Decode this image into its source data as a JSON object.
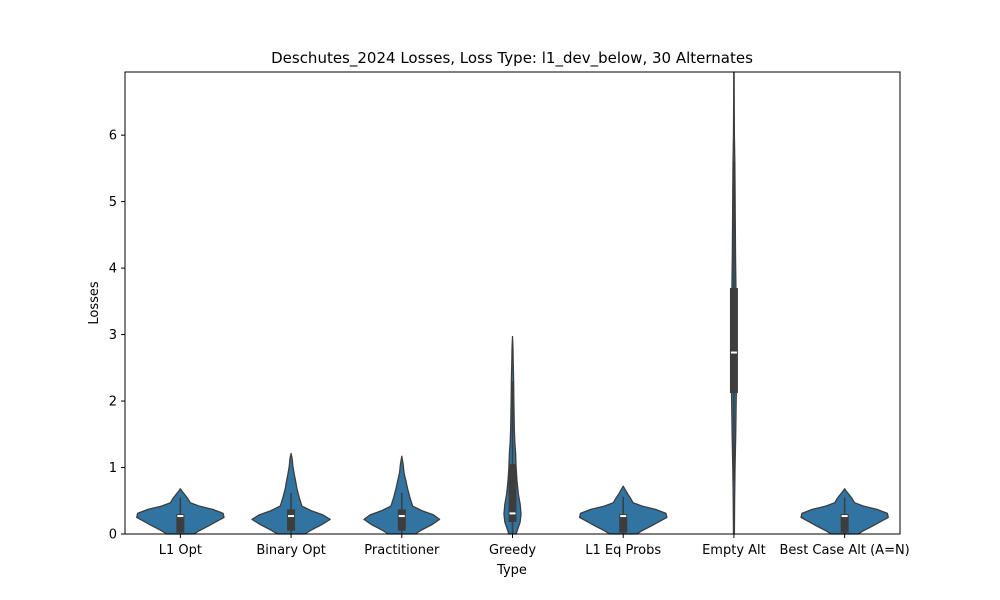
{
  "chart_data": {
    "type": "violin",
    "title": "Deschutes_2024 Losses, Loss Type: l1_dev_below, 30 Alternates",
    "xlabel": "Type",
    "ylabel": "Losses",
    "ylim": [
      0,
      6.95
    ],
    "yticks": [
      0,
      1,
      2,
      3,
      4,
      5,
      6
    ],
    "grid": false,
    "legend": "none",
    "colors": {
      "fill": "#3274a1",
      "outline": "#3d3d3d",
      "box": "#3d3d3d",
      "median": "#ffffff"
    },
    "categories": [
      {
        "label": "L1 Opt",
        "profile": [
          [
            0,
            0.3
          ],
          [
            0.05,
            0.42
          ],
          [
            0.12,
            0.62
          ],
          [
            0.18,
            0.78
          ],
          [
            0.25,
            0.97
          ],
          [
            0.31,
            0.95
          ],
          [
            0.37,
            0.72
          ],
          [
            0.42,
            0.42
          ],
          [
            0.47,
            0.22
          ],
          [
            0.53,
            0.17
          ],
          [
            0.6,
            0.09
          ],
          [
            0.65,
            0.03
          ],
          [
            0.68,
            0
          ]
        ],
        "box": {
          "q1": 0.02,
          "median": 0.27,
          "q3": 0.3,
          "whisker_low": 0,
          "whisker_high": 0.55
        }
      },
      {
        "label": "Binary Opt",
        "profile": [
          [
            0,
            0.3
          ],
          [
            0.06,
            0.45
          ],
          [
            0.14,
            0.68
          ],
          [
            0.22,
            0.87
          ],
          [
            0.29,
            0.7
          ],
          [
            0.35,
            0.45
          ],
          [
            0.42,
            0.24
          ],
          [
            0.55,
            0.18
          ],
          [
            0.68,
            0.13
          ],
          [
            0.8,
            0.1
          ],
          [
            0.9,
            0.07
          ],
          [
            1.02,
            0.04
          ],
          [
            1.13,
            0.025
          ],
          [
            1.21,
            0
          ]
        ],
        "box": {
          "q1": 0.05,
          "median": 0.27,
          "q3": 0.37,
          "whisker_low": 0,
          "whisker_high": 0.62
        }
      },
      {
        "label": "Practitioner",
        "profile": [
          [
            0,
            0.3
          ],
          [
            0.06,
            0.44
          ],
          [
            0.14,
            0.67
          ],
          [
            0.22,
            0.84
          ],
          [
            0.29,
            0.7
          ],
          [
            0.35,
            0.45
          ],
          [
            0.42,
            0.24
          ],
          [
            0.55,
            0.18
          ],
          [
            0.68,
            0.13
          ],
          [
            0.8,
            0.09
          ],
          [
            0.92,
            0.05
          ],
          [
            1.05,
            0.03
          ],
          [
            1.17,
            0
          ]
        ],
        "box": {
          "q1": 0.05,
          "median": 0.27,
          "q3": 0.37,
          "whisker_low": 0,
          "whisker_high": 0.62
        }
      },
      {
        "label": "Greedy",
        "profile": [
          [
            0,
            0.08
          ],
          [
            0.08,
            0.12
          ],
          [
            0.18,
            0.17
          ],
          [
            0.3,
            0.19
          ],
          [
            0.45,
            0.17
          ],
          [
            0.6,
            0.13
          ],
          [
            0.8,
            0.1
          ],
          [
            1.0,
            0.08
          ],
          [
            1.2,
            0.07
          ],
          [
            1.4,
            0.05
          ],
          [
            1.6,
            0.04
          ],
          [
            1.8,
            0.035
          ],
          [
            2.0,
            0.03
          ],
          [
            2.3,
            0.025
          ],
          [
            2.6,
            0.015
          ],
          [
            2.8,
            0.01
          ],
          [
            2.97,
            0
          ]
        ],
        "box": {
          "q1": 0.18,
          "median": 0.31,
          "q3": 1.05,
          "whisker_low": 0,
          "whisker_high": 2.3
        }
      },
      {
        "label": "L1 Eq Probs",
        "profile": [
          [
            0,
            0.3
          ],
          [
            0.05,
            0.42
          ],
          [
            0.12,
            0.62
          ],
          [
            0.18,
            0.78
          ],
          [
            0.25,
            0.97
          ],
          [
            0.31,
            0.95
          ],
          [
            0.37,
            0.72
          ],
          [
            0.42,
            0.42
          ],
          [
            0.47,
            0.22
          ],
          [
            0.53,
            0.17
          ],
          [
            0.6,
            0.1
          ],
          [
            0.66,
            0.05
          ],
          [
            0.72,
            0
          ]
        ],
        "box": {
          "q1": 0.02,
          "median": 0.27,
          "q3": 0.3,
          "whisker_low": 0,
          "whisker_high": 0.56
        }
      },
      {
        "label": "Empty Alt",
        "profile": [
          [
            0,
            0.01
          ],
          [
            0.5,
            0.015
          ],
          [
            1.0,
            0.025
          ],
          [
            1.5,
            0.04
          ],
          [
            2.0,
            0.05
          ],
          [
            2.5,
            0.06
          ],
          [
            2.8,
            0.06
          ],
          [
            3.2,
            0.055
          ],
          [
            3.7,
            0.045
          ],
          [
            4.2,
            0.035
          ],
          [
            4.7,
            0.03
          ],
          [
            5.2,
            0.025
          ],
          [
            5.6,
            0.02
          ],
          [
            6.0,
            0.01
          ],
          [
            6.5,
            0.006
          ],
          [
            6.95,
            0.004
          ]
        ],
        "box": {
          "q1": 2.12,
          "median": 2.73,
          "q3": 3.7,
          "whisker_low": 0.8,
          "whisker_high": 5.6
        }
      },
      {
        "label": "Best Case Alt (A=N)",
        "profile": [
          [
            0,
            0.3
          ],
          [
            0.05,
            0.42
          ],
          [
            0.12,
            0.62
          ],
          [
            0.18,
            0.78
          ],
          [
            0.25,
            0.97
          ],
          [
            0.31,
            0.95
          ],
          [
            0.37,
            0.72
          ],
          [
            0.42,
            0.42
          ],
          [
            0.47,
            0.22
          ],
          [
            0.53,
            0.17
          ],
          [
            0.6,
            0.09
          ],
          [
            0.65,
            0.03
          ],
          [
            0.68,
            0
          ]
        ],
        "box": {
          "q1": 0.02,
          "median": 0.27,
          "q3": 0.3,
          "whisker_low": 0,
          "whisker_high": 0.55
        }
      }
    ]
  }
}
